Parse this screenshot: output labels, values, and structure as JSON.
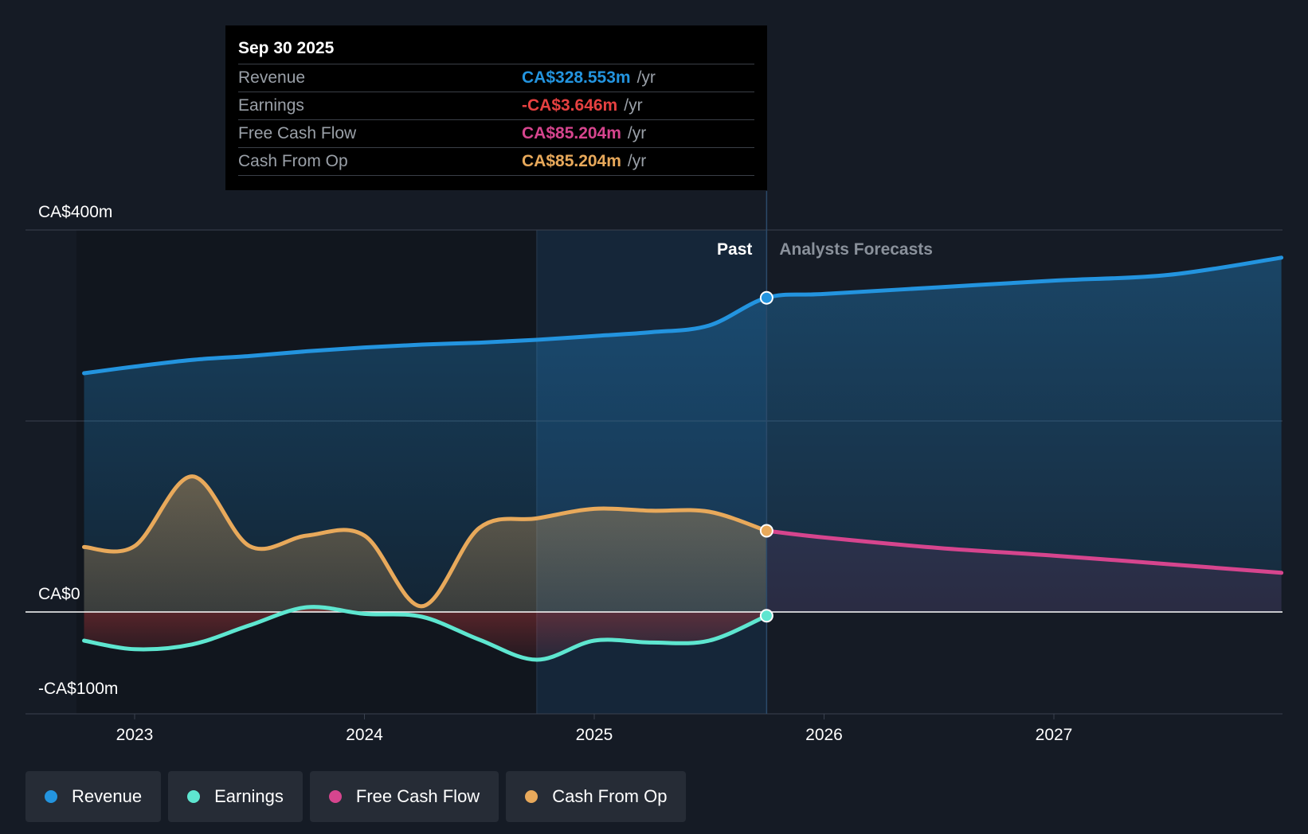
{
  "tooltip": {
    "date": "Sep 30 2025",
    "rows": [
      {
        "label": "Revenue",
        "value": "CA$328.553m",
        "unit": "/yr",
        "color": "#2394df"
      },
      {
        "label": "Earnings",
        "value": "-CA$3.646m",
        "unit": "/yr",
        "color": "#e64141"
      },
      {
        "label": "Free Cash Flow",
        "value": "CA$85.204m",
        "unit": "/yr",
        "color": "#d6458e"
      },
      {
        "label": "Cash From Op",
        "value": "CA$85.204m",
        "unit": "/yr",
        "color": "#e8a95b"
      }
    ]
  },
  "legend": [
    {
      "label": "Revenue",
      "color": "#2394df"
    },
    {
      "label": "Earnings",
      "color": "#5ee6d0"
    },
    {
      "label": "Free Cash Flow",
      "color": "#d6458e"
    },
    {
      "label": "Cash From Op",
      "color": "#e8a95b"
    }
  ],
  "chart_data": {
    "type": "line",
    "title": "",
    "xlabel": "",
    "ylabel": "",
    "xlim": [
      2022.78,
      2027.99
    ],
    "ylim": [
      -100,
      400
    ],
    "y_tick_labels": [
      {
        "value": 400,
        "label": "CA$400m"
      },
      {
        "value": 0,
        "label": "CA$0"
      },
      {
        "value": -100,
        "label": "-CA$100m"
      }
    ],
    "gridlines": [
      400,
      200
    ],
    "x_ticks": [
      {
        "value": 2023.0,
        "label": "2023"
      },
      {
        "value": 2024.0,
        "label": "2024"
      },
      {
        "value": 2025.0,
        "label": "2025"
      },
      {
        "value": 2026.0,
        "label": "2026"
      },
      {
        "value": 2027.0,
        "label": "2027"
      }
    ],
    "past_label": "Past",
    "forecast_label": "Analysts Forecasts",
    "divider_x": 2025.75,
    "highlight_start_x": 2024.75,
    "series": [
      {
        "name": "Revenue",
        "color": "#2394df",
        "fill": true,
        "past": [
          [
            2022.78,
            250
          ],
          [
            2023.0,
            257
          ],
          [
            2023.25,
            264
          ],
          [
            2023.5,
            268
          ],
          [
            2023.75,
            273
          ],
          [
            2024.0,
            277
          ],
          [
            2024.25,
            280
          ],
          [
            2024.5,
            282
          ],
          [
            2024.75,
            285
          ],
          [
            2025.0,
            289
          ],
          [
            2025.25,
            293
          ],
          [
            2025.5,
            300
          ],
          [
            2025.75,
            329
          ]
        ],
        "forecast": [
          [
            2025.75,
            329
          ],
          [
            2026.0,
            333
          ],
          [
            2026.5,
            340
          ],
          [
            2027.0,
            347
          ],
          [
            2027.5,
            353
          ],
          [
            2027.99,
            371
          ]
        ]
      },
      {
        "name": "Earnings",
        "color": "#5ee6d0",
        "fill": true,
        "past": [
          [
            2022.78,
            -30
          ],
          [
            2023.0,
            -39
          ],
          [
            2023.25,
            -34
          ],
          [
            2023.5,
            -14
          ],
          [
            2023.75,
            5
          ],
          [
            2024.0,
            -2
          ],
          [
            2024.25,
            -5
          ],
          [
            2024.5,
            -29
          ],
          [
            2024.75,
            -50
          ],
          [
            2025.0,
            -30
          ],
          [
            2025.25,
            -32
          ],
          [
            2025.5,
            -30
          ],
          [
            2025.75,
            -4
          ]
        ],
        "forecast": []
      },
      {
        "name": "Cash From Op",
        "color": "#e8a95b",
        "fill": true,
        "past": [
          [
            2022.78,
            68
          ],
          [
            2023.0,
            69
          ],
          [
            2023.25,
            142
          ],
          [
            2023.5,
            69
          ],
          [
            2023.75,
            80
          ],
          [
            2024.0,
            80
          ],
          [
            2024.25,
            6
          ],
          [
            2024.5,
            88
          ],
          [
            2024.75,
            98
          ],
          [
            2025.0,
            108
          ],
          [
            2025.25,
            106
          ],
          [
            2025.5,
            105
          ],
          [
            2025.75,
            85
          ]
        ],
        "forecast": []
      },
      {
        "name": "Free Cash Flow",
        "color": "#d6458e",
        "fill": true,
        "past": [],
        "forecast": [
          [
            2025.75,
            85
          ],
          [
            2026.0,
            78
          ],
          [
            2026.5,
            67
          ],
          [
            2027.0,
            59
          ],
          [
            2027.5,
            50
          ],
          [
            2027.99,
            41
          ]
        ]
      }
    ]
  }
}
